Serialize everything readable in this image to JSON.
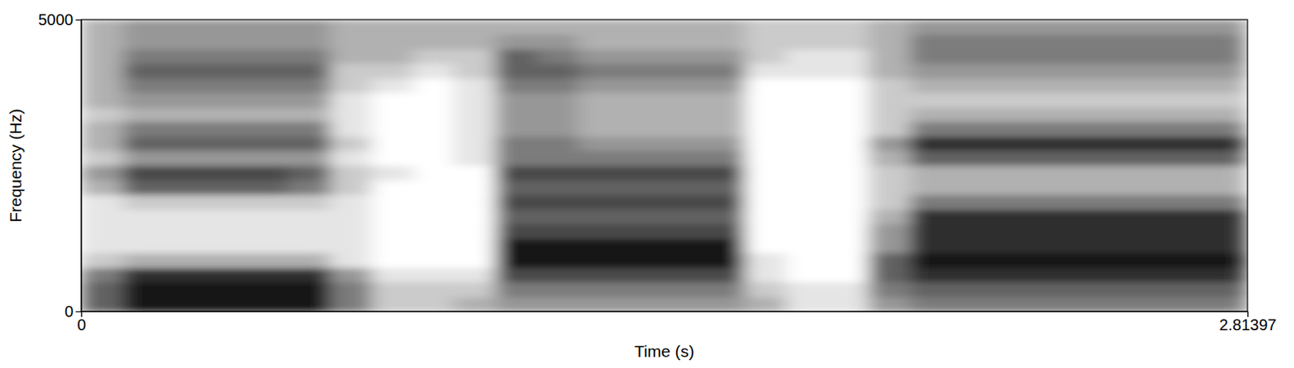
{
  "chart_data": {
    "type": "heatmap",
    "x_label": "Time (s)",
    "y_label": "Frequency (Hz)",
    "xlim": [
      0,
      2.81397
    ],
    "ylim": [
      0,
      5000
    ],
    "xticks": [
      0,
      2.81397
    ],
    "yticks": [
      0,
      5000
    ],
    "time_bins": [
      0,
      0.1,
      0.2,
      0.3,
      0.4,
      0.5,
      0.6,
      0.7,
      0.8,
      0.9,
      1.0,
      1.1,
      1.2,
      1.3,
      1.4,
      1.5,
      1.6,
      1.7,
      1.8,
      1.9,
      2.0,
      2.1,
      2.2,
      2.3,
      2.4,
      2.5,
      2.6,
      2.7,
      2.8,
      2.81397
    ],
    "frequency_bins": [
      0,
      250,
      500,
      750,
      1000,
      1250,
      1500,
      1750,
      2000,
      2250,
      2500,
      2750,
      3000,
      3250,
      3500,
      3750,
      4000,
      4250,
      4500,
      4750,
      5000
    ],
    "intensity": [
      [
        6,
        6,
        5,
        2,
        1,
        1,
        1,
        1,
        3,
        4,
        2,
        3,
        3,
        2,
        3,
        3,
        3,
        3,
        3,
        3
      ],
      [
        9,
        9,
        8,
        3,
        1,
        1,
        1,
        2,
        6,
        7,
        4,
        6,
        5,
        3,
        4,
        5,
        6,
        5,
        4,
        4
      ],
      [
        9,
        9,
        8,
        3,
        1,
        1,
        1,
        2,
        6,
        7,
        4,
        6,
        5,
        3,
        4,
        5,
        6,
        5,
        4,
        4
      ],
      [
        9,
        9,
        8,
        3,
        1,
        1,
        1,
        2,
        6,
        7,
        4,
        6,
        5,
        3,
        4,
        5,
        6,
        5,
        4,
        4
      ],
      [
        9,
        9,
        8,
        3,
        1,
        1,
        1,
        2,
        6,
        7,
        4,
        6,
        5,
        3,
        4,
        5,
        6,
        5,
        4,
        4
      ],
      [
        9,
        9,
        8,
        3,
        1,
        1,
        1,
        2,
        5,
        6,
        4,
        6,
        5,
        3,
        4,
        5,
        6,
        5,
        4,
        4
      ],
      [
        5,
        5,
        4,
        1,
        1,
        1,
        1,
        1,
        2,
        2,
        1,
        2,
        1,
        1,
        1,
        2,
        2,
        3,
        3,
        3
      ],
      [
        2,
        2,
        1,
        0,
        0,
        0,
        0,
        0,
        0,
        1,
        0,
        0,
        0,
        0,
        0,
        1,
        2,
        3,
        3,
        3
      ],
      [
        2,
        2,
        1,
        0,
        0,
        0,
        0,
        0,
        0,
        0,
        0,
        0,
        0,
        0,
        0,
        0,
        1,
        2,
        3,
        3
      ],
      [
        3,
        2,
        1,
        0,
        0,
        0,
        0,
        0,
        0,
        0,
        1,
        1,
        1,
        1,
        1,
        1,
        2,
        2,
        3,
        3
      ],
      [
        4,
        5,
        7,
        9,
        9,
        7,
        6,
        7,
        6,
        7,
        5,
        5,
        4,
        4,
        4,
        5,
        6,
        6,
        4,
        3
      ],
      [
        4,
        5,
        7,
        9,
        9,
        7,
        6,
        7,
        6,
        7,
        5,
        5,
        4,
        4,
        4,
        5,
        6,
        5,
        4,
        3
      ],
      [
        4,
        5,
        7,
        9,
        9,
        7,
        6,
        7,
        6,
        7,
        5,
        4,
        3,
        3,
        3,
        4,
        5,
        4,
        3,
        3
      ],
      [
        4,
        5,
        7,
        9,
        9,
        7,
        6,
        7,
        6,
        7,
        5,
        4,
        3,
        3,
        3,
        4,
        5,
        4,
        3,
        3
      ],
      [
        4,
        5,
        7,
        9,
        9,
        7,
        6,
        7,
        6,
        7,
        5,
        4,
        3,
        3,
        3,
        4,
        5,
        4,
        3,
        3
      ],
      [
        4,
        5,
        7,
        9,
        9,
        7,
        6,
        7,
        6,
        7,
        5,
        4,
        3,
        3,
        3,
        4,
        5,
        4,
        3,
        3
      ],
      [
        3,
        2,
        1,
        1,
        0,
        0,
        0,
        0,
        0,
        0,
        0,
        0,
        0,
        0,
        0,
        0,
        1,
        2,
        2,
        2
      ],
      [
        1,
        1,
        0,
        0,
        0,
        0,
        0,
        0,
        0,
        0,
        0,
        0,
        0,
        0,
        0,
        0,
        1,
        1,
        2,
        2
      ],
      [
        1,
        1,
        0,
        0,
        0,
        0,
        0,
        0,
        0,
        0,
        0,
        0,
        0,
        0,
        0,
        0,
        1,
        1,
        2,
        2
      ],
      [
        4,
        5,
        6,
        6,
        4,
        4,
        3,
        2,
        2,
        2,
        3,
        4,
        2,
        2,
        2,
        2,
        3,
        3,
        3,
        3
      ],
      [
        5,
        6,
        8,
        9,
        8,
        8,
        8,
        5,
        3,
        3,
        6,
        8,
        5,
        3,
        2,
        3,
        4,
        5,
        5,
        4
      ],
      [
        5,
        6,
        8,
        9,
        8,
        8,
        8,
        5,
        3,
        3,
        6,
        8,
        5,
        3,
        2,
        3,
        4,
        5,
        5,
        4
      ],
      [
        5,
        6,
        8,
        9,
        8,
        8,
        8,
        5,
        3,
        3,
        6,
        8,
        5,
        3,
        2,
        3,
        4,
        5,
        5,
        4
      ],
      [
        5,
        6,
        8,
        9,
        8,
        8,
        8,
        5,
        3,
        3,
        6,
        8,
        5,
        3,
        2,
        3,
        4,
        5,
        5,
        4
      ],
      [
        5,
        6,
        8,
        9,
        8,
        8,
        8,
        5,
        3,
        3,
        6,
        8,
        5,
        3,
        2,
        3,
        4,
        5,
        5,
        4
      ],
      [
        5,
        6,
        8,
        9,
        8,
        8,
        8,
        5,
        3,
        3,
        6,
        8,
        5,
        3,
        2,
        3,
        4,
        5,
        5,
        4
      ],
      [
        5,
        6,
        8,
        9,
        8,
        8,
        8,
        5,
        3,
        3,
        6,
        8,
        5,
        3,
        2,
        3,
        4,
        5,
        5,
        4
      ],
      [
        5,
        6,
        8,
        9,
        8,
        8,
        8,
        5,
        3,
        3,
        6,
        8,
        5,
        3,
        2,
        3,
        4,
        5,
        5,
        4
      ],
      [
        4,
        5,
        6,
        7,
        6,
        6,
        6,
        4,
        2,
        2,
        4,
        5,
        3,
        2,
        2,
        2,
        3,
        3,
        3,
        3
      ]
    ]
  }
}
